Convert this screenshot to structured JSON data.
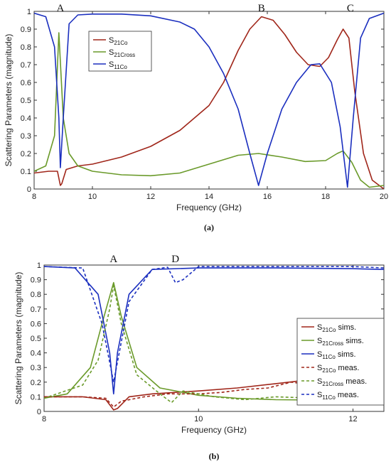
{
  "chart_data": [
    {
      "type": "line",
      "caption": "(a)",
      "xlabel": "Frequency (GHz)",
      "ylabel": "Scattering Parameters (magnitude)",
      "xlim": [
        8,
        20
      ],
      "ylim": [
        0,
        1
      ],
      "xticks": [
        "8",
        "10",
        "12",
        "14",
        "16",
        "18",
        "20"
      ],
      "yticks": [
        "0",
        "0.1",
        "0.2",
        "0.3",
        "0.4",
        "0.5",
        "0.6",
        "0.7",
        "0.8",
        "0.9",
        "1"
      ],
      "legend_position": "top-left",
      "annotations": [
        {
          "text": "A",
          "x": 8.9
        },
        {
          "text": "B",
          "x": 15.8
        },
        {
          "text": "C",
          "x": 18.85
        }
      ],
      "series": [
        {
          "name": "S21Co",
          "label_main": "S",
          "label_sub": "21Co",
          "color": "#a0261a",
          "dash": false,
          "points": [
            [
              8,
              0.09
            ],
            [
              8.5,
              0.1
            ],
            [
              8.8,
              0.1
            ],
            [
              8.9,
              0.02
            ],
            [
              8.95,
              0.03
            ],
            [
              9.1,
              0.11
            ],
            [
              9.5,
              0.13
            ],
            [
              10,
              0.14
            ],
            [
              11,
              0.18
            ],
            [
              12,
              0.24
            ],
            [
              13,
              0.33
            ],
            [
              14,
              0.47
            ],
            [
              14.5,
              0.6
            ],
            [
              15,
              0.78
            ],
            [
              15.4,
              0.9
            ],
            [
              15.8,
              0.97
            ],
            [
              16.2,
              0.95
            ],
            [
              16.6,
              0.87
            ],
            [
              17,
              0.77
            ],
            [
              17.4,
              0.7
            ],
            [
              17.8,
              0.69
            ],
            [
              18.1,
              0.74
            ],
            [
              18.4,
              0.84
            ],
            [
              18.6,
              0.9
            ],
            [
              18.8,
              0.85
            ],
            [
              19,
              0.55
            ],
            [
              19.3,
              0.2
            ],
            [
              19.6,
              0.05
            ],
            [
              20,
              0.0
            ]
          ]
        },
        {
          "name": "S21Cross",
          "label_main": "S",
          "label_sub": "21Cross",
          "color": "#6a9a2a",
          "dash": false,
          "points": [
            [
              8,
              0.1
            ],
            [
              8.4,
              0.13
            ],
            [
              8.7,
              0.3
            ],
            [
              8.85,
              0.88
            ],
            [
              9,
              0.4
            ],
            [
              9.2,
              0.2
            ],
            [
              9.5,
              0.13
            ],
            [
              10,
              0.1
            ],
            [
              11,
              0.08
            ],
            [
              12,
              0.075
            ],
            [
              13,
              0.09
            ],
            [
              14,
              0.14
            ],
            [
              15,
              0.19
            ],
            [
              15.7,
              0.2
            ],
            [
              16.5,
              0.18
            ],
            [
              17.3,
              0.155
            ],
            [
              18,
              0.16
            ],
            [
              18.4,
              0.2
            ],
            [
              18.6,
              0.215
            ],
            [
              18.9,
              0.15
            ],
            [
              19.2,
              0.05
            ],
            [
              19.5,
              0.01
            ],
            [
              20,
              0.02
            ]
          ]
        },
        {
          "name": "S11Co",
          "label_main": "S",
          "label_sub": "11Co",
          "color": "#1b2fbf",
          "dash": false,
          "points": [
            [
              8,
              0.99
            ],
            [
              8.4,
              0.97
            ],
            [
              8.7,
              0.8
            ],
            [
              8.85,
              0.4
            ],
            [
              8.9,
              0.12
            ],
            [
              9.0,
              0.4
            ],
            [
              9.2,
              0.93
            ],
            [
              9.5,
              0.98
            ],
            [
              10,
              0.985
            ],
            [
              11,
              0.985
            ],
            [
              12,
              0.975
            ],
            [
              13,
              0.94
            ],
            [
              13.5,
              0.9
            ],
            [
              14,
              0.8
            ],
            [
              14.5,
              0.65
            ],
            [
              15,
              0.45
            ],
            [
              15.4,
              0.2
            ],
            [
              15.7,
              0.02
            ],
            [
              16,
              0.2
            ],
            [
              16.5,
              0.45
            ],
            [
              17,
              0.6
            ],
            [
              17.5,
              0.7
            ],
            [
              17.8,
              0.705
            ],
            [
              18.2,
              0.6
            ],
            [
              18.5,
              0.35
            ],
            [
              18.75,
              0.01
            ],
            [
              18.95,
              0.4
            ],
            [
              19.2,
              0.85
            ],
            [
              19.5,
              0.96
            ],
            [
              20,
              0.99
            ]
          ]
        }
      ]
    },
    {
      "type": "line",
      "caption": "(b)",
      "xlabel": "Frequency (GHz)",
      "ylabel": "Scattering Parameters (magnitude)",
      "xlim": [
        8,
        12.4
      ],
      "ylim": [
        0,
        1
      ],
      "xticks": [
        "8",
        "10",
        "12"
      ],
      "yticks": [
        "0",
        "0.1",
        "0.2",
        "0.3",
        "0.4",
        "0.5",
        "0.6",
        "0.7",
        "0.8",
        "0.9",
        "1"
      ],
      "legend_position": "right",
      "annotations": [
        {
          "text": "A",
          "x": 8.9
        },
        {
          "text": "D",
          "x": 9.7
        }
      ],
      "series": [
        {
          "name": "S21Co sims.",
          "label_main": "S",
          "label_sub": "21Co",
          "label_suffix": " sims.",
          "color": "#a0261a",
          "dash": false,
          "points": [
            [
              8,
              0.1
            ],
            [
              8.5,
              0.1
            ],
            [
              8.8,
              0.08
            ],
            [
              8.9,
              0.01
            ],
            [
              8.95,
              0.02
            ],
            [
              9.1,
              0.1
            ],
            [
              9.4,
              0.12
            ],
            [
              10,
              0.14
            ],
            [
              10.5,
              0.16
            ],
            [
              11,
              0.19
            ],
            [
              11.5,
              0.22
            ],
            [
              12,
              0.26
            ],
            [
              12.4,
              0.29
            ]
          ]
        },
        {
          "name": "S21Cross sims.",
          "label_main": "S",
          "label_sub": "21Cross",
          "label_suffix": " sims.",
          "color": "#6a9a2a",
          "dash": false,
          "points": [
            [
              8,
              0.09
            ],
            [
              8.3,
              0.12
            ],
            [
              8.6,
              0.3
            ],
            [
              8.75,
              0.6
            ],
            [
              8.9,
              0.88
            ],
            [
              9.0,
              0.65
            ],
            [
              9.2,
              0.3
            ],
            [
              9.5,
              0.16
            ],
            [
              10,
              0.11
            ],
            [
              10.5,
              0.09
            ],
            [
              11,
              0.08
            ],
            [
              12,
              0.075
            ],
            [
              12.4,
              0.075
            ]
          ]
        },
        {
          "name": "S11Co sims.",
          "label_main": "S",
          "label_sub": "11Co",
          "label_suffix": " sims.",
          "color": "#1b2fbf",
          "dash": false,
          "points": [
            [
              8,
              0.99
            ],
            [
              8.4,
              0.98
            ],
            [
              8.7,
              0.8
            ],
            [
              8.85,
              0.4
            ],
            [
              8.9,
              0.12
            ],
            [
              8.95,
              0.4
            ],
            [
              9.1,
              0.8
            ],
            [
              9.4,
              0.97
            ],
            [
              10,
              0.98
            ],
            [
              11,
              0.98
            ],
            [
              12,
              0.975
            ],
            [
              12.4,
              0.97
            ]
          ]
        },
        {
          "name": "S21Co meas.",
          "label_main": "S",
          "label_sub": "21Co",
          "label_suffix": " meas.",
          "color": "#a0261a",
          "dash": true,
          "points": [
            [
              8,
              0.1
            ],
            [
              8.5,
              0.1
            ],
            [
              8.8,
              0.09
            ],
            [
              8.9,
              0.03
            ],
            [
              9.0,
              0.07
            ],
            [
              9.3,
              0.1
            ],
            [
              9.6,
              0.12
            ],
            [
              9.8,
              0.12
            ],
            [
              10,
              0.12
            ],
            [
              10.3,
              0.13
            ],
            [
              10.6,
              0.15
            ],
            [
              10.9,
              0.16
            ],
            [
              11.2,
              0.2
            ],
            [
              11.5,
              0.18
            ],
            [
              11.8,
              0.22
            ],
            [
              12.1,
              0.23
            ],
            [
              12.4,
              0.26
            ]
          ]
        },
        {
          "name": "S21Cross meas.",
          "label_main": "S",
          "label_sub": "21Cross",
          "label_suffix": " meas.",
          "color": "#6a9a2a",
          "dash": true,
          "points": [
            [
              8,
              0.09
            ],
            [
              8.5,
              0.18
            ],
            [
              8.7,
              0.35
            ],
            [
              8.85,
              0.7
            ],
            [
              8.9,
              0.86
            ],
            [
              9.0,
              0.6
            ],
            [
              9.2,
              0.25
            ],
            [
              9.5,
              0.12
            ],
            [
              9.65,
              0.06
            ],
            [
              9.8,
              0.14
            ],
            [
              10.2,
              0.1
            ],
            [
              10.6,
              0.08
            ],
            [
              11,
              0.1
            ],
            [
              11.5,
              0.09
            ],
            [
              12,
              0.1
            ],
            [
              12.4,
              0.09
            ]
          ]
        },
        {
          "name": "S11Co meas.",
          "label_main": "S",
          "label_sub": "11Co",
          "label_suffix": " meas.",
          "color": "#1b2fbf",
          "dash": true,
          "points": [
            [
              8,
              0.99
            ],
            [
              8.5,
              0.98
            ],
            [
              8.75,
              0.6
            ],
            [
              8.9,
              0.2
            ],
            [
              9.1,
              0.75
            ],
            [
              9.4,
              0.97
            ],
            [
              9.6,
              0.985
            ],
            [
              9.7,
              0.88
            ],
            [
              9.8,
              0.9
            ],
            [
              10,
              0.99
            ],
            [
              11,
              0.99
            ],
            [
              12,
              0.99
            ],
            [
              12.4,
              0.98
            ]
          ]
        }
      ]
    }
  ]
}
